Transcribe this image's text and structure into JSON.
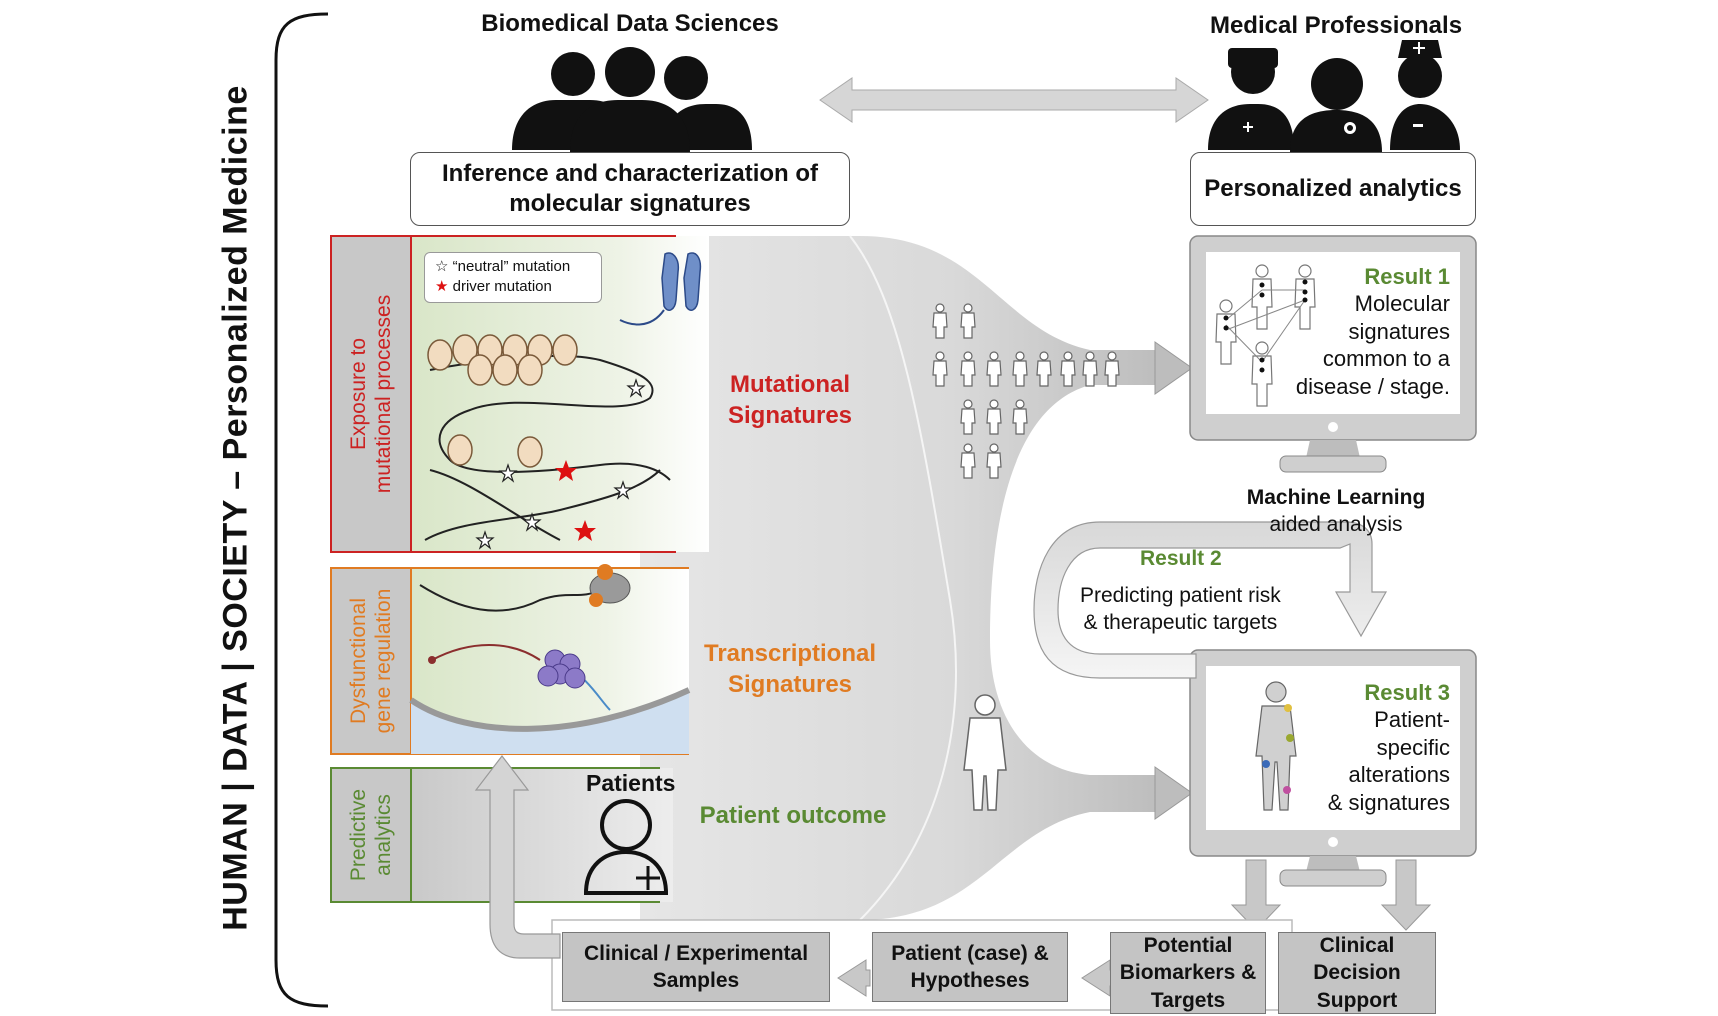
{
  "side_title": "HUMAN | DATA | SOCIETY – Personalized Medicine",
  "header_left": "Biomedical Data Sciences",
  "header_right": "Medical Professionals",
  "box_left": "Inference and characterization of molecular signatures",
  "box_right": "Personalized analytics",
  "panels": {
    "exposure": "Exposure to\nmutational processes",
    "dysfunctional": "Dysfunctional\ngene regulation",
    "predictive": "Predictive\nanalytics"
  },
  "legend": {
    "neutral": "“neutral” mutation",
    "driver": "driver mutation"
  },
  "patients_label": "Patients",
  "signatures": {
    "mutational": "Mutational\nSignatures",
    "transcriptional": "Transcriptional\nSignatures",
    "outcome": "Patient outcome"
  },
  "colors": {
    "mutational": "#cc2222",
    "transcriptional": "#e07b22",
    "outcome": "#5a8a33",
    "result": "#5a8a33"
  },
  "result1": {
    "title": "Result 1",
    "text": "Molecular\nsignatures\ncommon to a\ndisease / stage."
  },
  "ml": {
    "title": "Machine Learning",
    "subtitle": "aided analysis"
  },
  "result2": {
    "title": "Result 2",
    "text": "Predicting patient risk\n& therapeutic targets"
  },
  "result3": {
    "title": "Result 3",
    "text": "Patient-\nspecific\nalterations\n& signatures"
  },
  "bottom": {
    "samples": "Clinical / Experimental\nSamples",
    "hypotheses": "Patient (case) &\nHypotheses",
    "biomarkers": "Potential\nBiomarkers &\nTargets",
    "decision": "Clinical\nDecision\nSupport"
  }
}
